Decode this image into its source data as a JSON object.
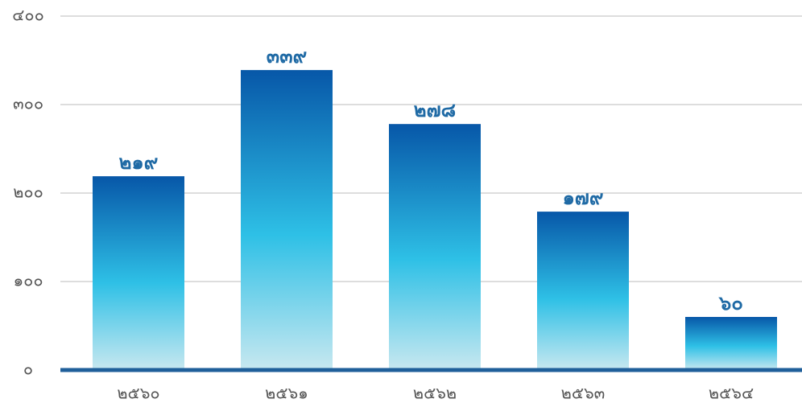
{
  "chart_data": {
    "type": "bar",
    "categories": [
      "๒๕๖๐",
      "๒๕๖๑",
      "๒๕๖๒",
      "๒๕๖๓",
      "๒๕๖๔"
    ],
    "values": [
      219,
      339,
      278,
      179,
      60
    ],
    "value_labels": [
      "๒๑๙",
      "๓๓๙",
      "๒๗๘",
      "๑๗๙",
      "๖๐"
    ],
    "ylim": [
      0,
      400
    ],
    "yticks": [
      {
        "value": 0,
        "label": "๐"
      },
      {
        "value": 100,
        "label": "๑๐๐"
      },
      {
        "value": 200,
        "label": "๒๐๐"
      },
      {
        "value": 300,
        "label": "๓๐๐"
      },
      {
        "value": 400,
        "label": "๔๐๐"
      }
    ],
    "grid": true
  }
}
